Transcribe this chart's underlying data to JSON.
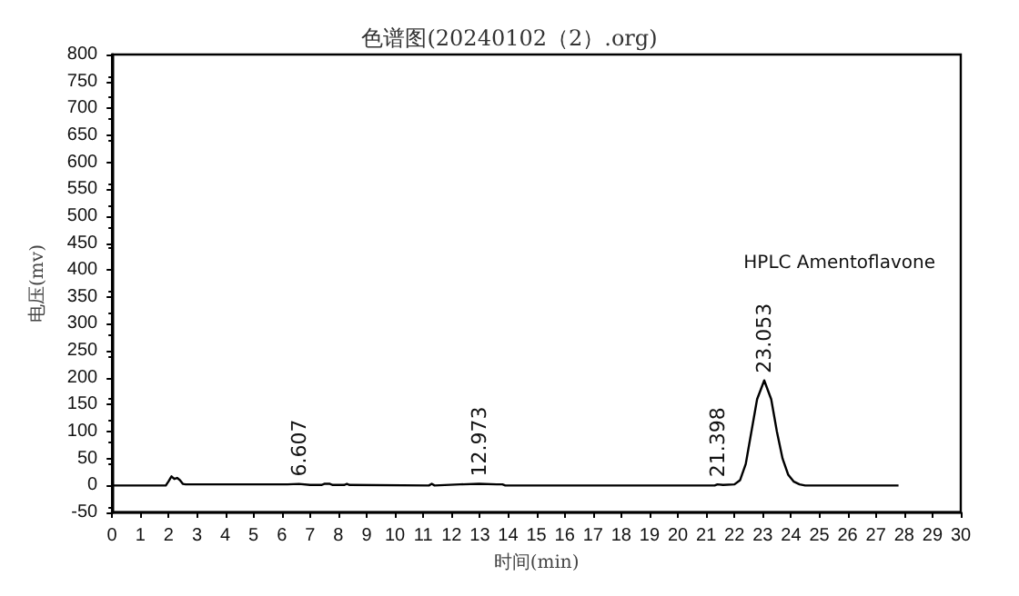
{
  "chart_data": {
    "type": "line",
    "title": "色谱图(20240102（2）.org)",
    "xlabel": "时间(min)",
    "ylabel": "电压(mv)",
    "x": [
      0,
      1.9,
      2.0,
      2.1,
      2.2,
      2.3,
      2.4,
      2.5,
      2.6,
      6.2,
      6.607,
      7.0,
      7.4,
      7.5,
      7.7,
      7.8,
      8.2,
      8.3,
      8.4,
      11.2,
      11.3,
      11.4,
      12.3,
      12.973,
      13.6,
      13.8,
      13.9,
      21.3,
      21.398,
      21.6,
      22.0,
      22.2,
      22.4,
      22.6,
      22.8,
      23.053,
      23.3,
      23.5,
      23.7,
      23.9,
      24.1,
      24.3,
      24.5,
      27.8
    ],
    "series": [
      {
        "color": "#000000",
        "values": [
          0,
          0,
          8,
          17,
          12,
          14,
          10,
          3,
          2,
          2,
          3,
          1,
          1,
          3,
          3,
          1,
          1,
          3,
          1,
          0,
          3,
          0,
          2,
          3,
          2,
          2,
          0,
          0,
          2,
          1,
          2,
          10,
          40,
          100,
          160,
          195,
          160,
          100,
          50,
          20,
          7,
          2,
          0,
          0
        ]
      }
    ],
    "annotations": [
      {
        "text": "6.607",
        "x": 6.607,
        "y": 3
      },
      {
        "text": "12.973",
        "x": 12.973,
        "y": 3
      },
      {
        "text": "21.398",
        "x": 21.398,
        "y": 2
      },
      {
        "text": "23.053",
        "x": 23.053,
        "y": 195
      },
      "HPLC Amentoflavone"
    ],
    "xlim": [
      0,
      30
    ],
    "xticks": [
      0,
      1,
      2,
      3,
      4,
      5,
      6,
      7,
      8,
      9,
      10,
      11,
      12,
      13,
      14,
      15,
      16,
      17,
      18,
      19,
      20,
      21,
      22,
      23,
      24,
      25,
      26,
      27,
      28,
      29,
      30
    ],
    "ylim": [
      -50,
      800
    ],
    "yticks": [
      -50,
      0,
      50,
      100,
      150,
      200,
      250,
      300,
      350,
      400,
      450,
      500,
      550,
      600,
      650,
      700,
      750,
      800
    ],
    "grid": false,
    "marker": "none",
    "line_style": "solid"
  }
}
